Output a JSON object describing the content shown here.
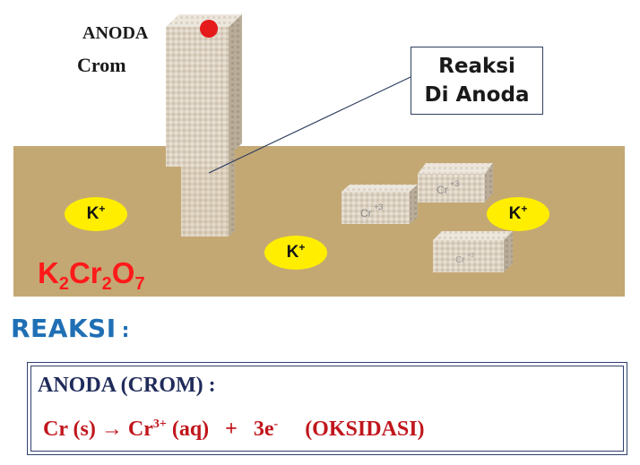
{
  "electrode": {
    "label_line1": "ANODA",
    "label_line2": "Crom"
  },
  "callout": {
    "line1": "Reaksi",
    "line2": "Di Anoda"
  },
  "solution": {
    "ions": [
      {
        "symbol": "K",
        "charge": "+"
      },
      {
        "symbol": "K",
        "charge": "+"
      },
      {
        "symbol": "K",
        "charge": "+"
      }
    ],
    "chromium_blocks": [
      {
        "symbol": "Cr",
        "charge": "+3"
      },
      {
        "symbol": "Cr",
        "charge": "+3"
      },
      {
        "symbol": "Cr",
        "charge": "+3"
      }
    ],
    "formula": {
      "k": "K",
      "k_sub": "2",
      "cr": "Cr",
      "cr_sub": "2",
      "o": "O",
      "o_sub": "7"
    }
  },
  "reaction_heading": {
    "text": "REAKSI",
    "colon": ":"
  },
  "reaction_box": {
    "title": "ANODA (CROM) :",
    "equation": {
      "reactant": "Cr (s) ",
      "arrow": "→",
      "product": " Cr",
      "product_charge": "3+",
      "product_state": " (aq)   +   3e",
      "electron_charge": "-",
      "type": "     (OKSIDASI)"
    }
  },
  "colors": {
    "solution": "#c4a874",
    "ion_fill": "#ffee00",
    "electrode_dot": "#e51a1a",
    "heading": "#1f6fb5",
    "equation": "#c0161c"
  }
}
